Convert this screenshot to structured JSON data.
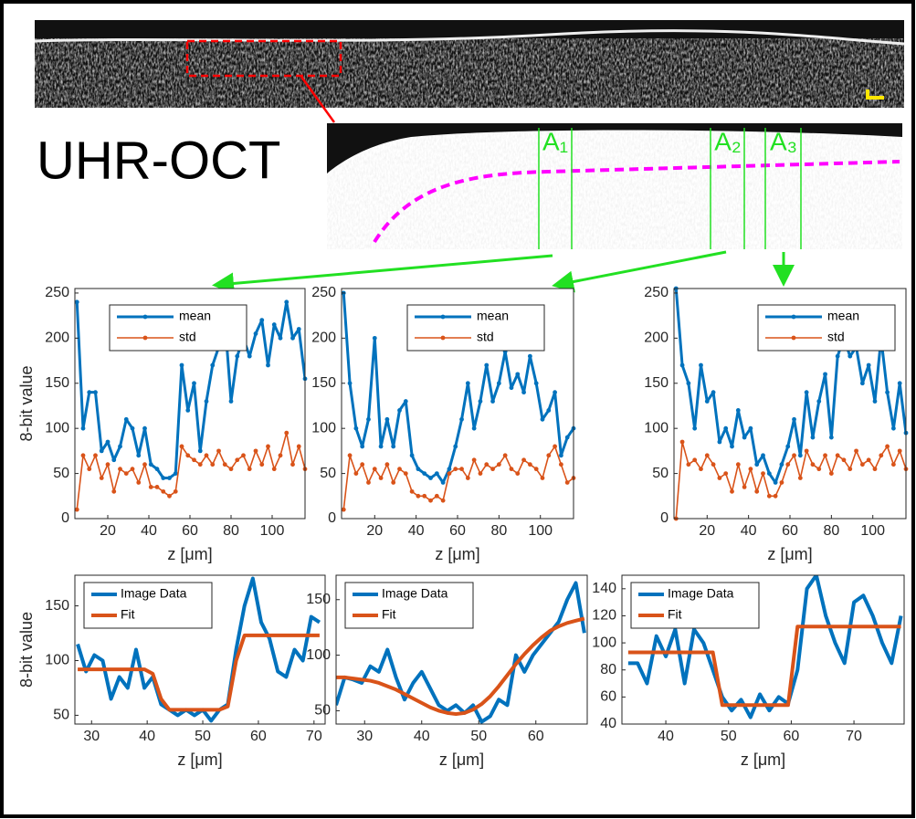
{
  "figure": {
    "label": "UHR-OCT",
    "regions": [
      "A₁",
      "A₂",
      "A₃"
    ]
  },
  "chart_data": [
    {
      "type": "line",
      "xlabel": "z [μm]",
      "ylabel": "8-bit value",
      "legend": "upper left",
      "markers": true,
      "x": [
        5,
        8,
        11,
        14,
        17,
        20,
        23,
        26,
        29,
        32,
        35,
        38,
        41,
        44,
        47,
        50,
        53,
        56,
        59,
        62,
        65,
        68,
        71,
        74,
        77,
        80,
        83,
        86,
        89,
        92,
        95,
        98,
        101,
        104,
        107,
        110,
        113,
        116
      ],
      "series": [
        {
          "name": "mean",
          "color": "#0072bd",
          "values": [
            240,
            100,
            140,
            140,
            75,
            85,
            65,
            80,
            110,
            100,
            70,
            100,
            60,
            55,
            45,
            45,
            50,
            170,
            120,
            150,
            75,
            130,
            170,
            190,
            220,
            130,
            180,
            200,
            180,
            205,
            220,
            170,
            215,
            200,
            240,
            200,
            210,
            155
          ]
        },
        {
          "name": "std",
          "color": "#d95319",
          "values": [
            10,
            70,
            55,
            70,
            45,
            60,
            30,
            55,
            50,
            55,
            40,
            60,
            35,
            35,
            30,
            25,
            30,
            80,
            70,
            65,
            60,
            70,
            60,
            75,
            60,
            55,
            65,
            70,
            55,
            75,
            60,
            80,
            55,
            70,
            95,
            60,
            80,
            55
          ]
        }
      ],
      "xlim": [
        4,
        116
      ],
      "xticks": [
        20,
        40,
        60,
        80,
        100
      ],
      "ylim": [
        0,
        255
      ],
      "yticks": [
        0,
        50,
        100,
        150,
        200,
        250
      ]
    },
    {
      "type": "line",
      "xlabel": "z [μm]",
      "legend": "upper center",
      "markers": true,
      "x": [
        5,
        8,
        11,
        14,
        17,
        20,
        23,
        26,
        29,
        32,
        35,
        38,
        41,
        44,
        47,
        50,
        53,
        56,
        59,
        62,
        65,
        68,
        71,
        74,
        77,
        80,
        83,
        86,
        89,
        92,
        95,
        98,
        101,
        104,
        107,
        110,
        113,
        116
      ],
      "series": [
        {
          "name": "mean",
          "color": "#0072bd",
          "values": [
            250,
            150,
            100,
            80,
            110,
            200,
            80,
            110,
            80,
            120,
            130,
            70,
            55,
            50,
            45,
            50,
            40,
            55,
            80,
            110,
            150,
            100,
            130,
            170,
            130,
            150,
            185,
            145,
            160,
            140,
            180,
            150,
            110,
            120,
            140,
            70,
            90,
            100
          ]
        },
        {
          "name": "std",
          "color": "#d95319",
          "values": [
            10,
            70,
            50,
            60,
            40,
            55,
            45,
            60,
            40,
            55,
            50,
            30,
            25,
            25,
            20,
            25,
            20,
            50,
            55,
            55,
            45,
            65,
            50,
            60,
            55,
            60,
            70,
            55,
            50,
            65,
            60,
            55,
            45,
            70,
            80,
            60,
            40,
            45
          ]
        }
      ],
      "xlim": [
        4,
        116
      ],
      "xticks": [
        20,
        40,
        60,
        80,
        100
      ],
      "ylim": [
        0,
        255
      ],
      "yticks": [
        0,
        50,
        100,
        150,
        200,
        250
      ]
    },
    {
      "type": "line",
      "xlabel": "z [μm]",
      "legend": "upper right",
      "markers": true,
      "x": [
        5,
        8,
        11,
        14,
        17,
        20,
        23,
        26,
        29,
        32,
        35,
        38,
        41,
        44,
        47,
        50,
        53,
        56,
        59,
        62,
        65,
        68,
        71,
        74,
        77,
        80,
        83,
        86,
        89,
        92,
        95,
        98,
        101,
        104,
        107,
        110,
        113,
        116
      ],
      "series": [
        {
          "name": "mean",
          "color": "#0072bd",
          "values": [
            255,
            170,
            150,
            100,
            170,
            130,
            140,
            85,
            100,
            80,
            120,
            90,
            100,
            60,
            70,
            50,
            40,
            60,
            80,
            110,
            70,
            140,
            90,
            130,
            160,
            90,
            180,
            200,
            180,
            190,
            150,
            170,
            130,
            200,
            140,
            100,
            150,
            95
          ]
        },
        {
          "name": "std",
          "color": "#d95319",
          "values": [
            0,
            85,
            60,
            65,
            55,
            70,
            60,
            45,
            50,
            30,
            60,
            35,
            55,
            30,
            50,
            25,
            25,
            40,
            60,
            70,
            45,
            75,
            60,
            55,
            70,
            50,
            70,
            65,
            55,
            75,
            60,
            65,
            55,
            70,
            80,
            60,
            75,
            55
          ]
        }
      ],
      "xlim": [
        4,
        116
      ],
      "xticks": [
        20,
        40,
        60,
        80,
        100
      ],
      "ylim": [
        0,
        255
      ],
      "yticks": [
        0,
        50,
        100,
        150,
        200,
        250
      ]
    },
    {
      "type": "line",
      "xlabel": "z [μm]",
      "ylabel": "8-bit value",
      "legend": "upper left",
      "markers": false,
      "x": [
        27.5,
        29,
        30.5,
        32,
        33.5,
        35,
        36.5,
        38,
        39.5,
        41,
        42.5,
        44,
        45.5,
        47,
        48.5,
        50,
        51.5,
        53,
        54.5,
        56,
        57.5,
        59,
        60.5,
        62,
        63.5,
        65,
        66.5,
        68,
        69.5,
        71
      ],
      "series": [
        {
          "name": "Image Data",
          "color": "#0072bd",
          "values": [
            115,
            90,
            105,
            100,
            65,
            85,
            75,
            110,
            75,
            85,
            60,
            55,
            50,
            55,
            50,
            55,
            45,
            55,
            60,
            110,
            150,
            175,
            135,
            120,
            90,
            85,
            110,
            100,
            140,
            135
          ]
        },
        {
          "name": "Fit",
          "color": "#d95319",
          "values": [
            92,
            92,
            92,
            92,
            92,
            92,
            92,
            92,
            92,
            88,
            65,
            55,
            55,
            55,
            55,
            55,
            55,
            55,
            58,
            100,
            123,
            123,
            123,
            123,
            123,
            123,
            123,
            123,
            123,
            123
          ]
        }
      ],
      "xlim": [
        27,
        72
      ],
      "xticks": [
        30,
        40,
        50,
        60,
        70
      ],
      "ylim": [
        42,
        178
      ],
      "yticks": [
        50,
        100,
        150
      ]
    },
    {
      "type": "line",
      "xlabel": "z [μm]",
      "legend": "upper left",
      "markers": false,
      "x": [
        25,
        26.5,
        28,
        29.5,
        31,
        32.5,
        34,
        35.5,
        37,
        38.5,
        40,
        41.5,
        43,
        44.5,
        46,
        47.5,
        49,
        50.5,
        52,
        53.5,
        55,
        56.5,
        58,
        59.5,
        61,
        62.5,
        64,
        65.5,
        67,
        68.5
      ],
      "series": [
        {
          "name": "Image Data",
          "color": "#0072bd",
          "values": [
            55,
            80,
            78,
            75,
            90,
            85,
            105,
            80,
            60,
            75,
            85,
            70,
            55,
            50,
            55,
            48,
            55,
            40,
            45,
            60,
            55,
            100,
            85,
            100,
            110,
            120,
            130,
            150,
            165,
            120
          ]
        },
        {
          "name": "Fit",
          "color": "#d95319",
          "values": [
            80,
            80,
            79,
            78,
            77,
            75,
            72,
            69,
            65,
            61,
            57,
            53,
            50,
            48,
            47,
            48,
            51,
            56,
            63,
            72,
            82,
            92,
            101,
            109,
            116,
            122,
            126,
            129,
            131,
            133
          ]
        }
      ],
      "xlim": [
        25,
        69
      ],
      "xticks": [
        30,
        40,
        50,
        60
      ],
      "ylim": [
        38,
        172
      ],
      "yticks": [
        50,
        100,
        150
      ]
    },
    {
      "type": "line",
      "xlabel": "z [μm]",
      "legend": "upper left",
      "markers": false,
      "x": [
        34,
        35.5,
        37,
        38.5,
        40,
        41.5,
        43,
        44.5,
        46,
        47.5,
        49,
        50.5,
        52,
        53.5,
        55,
        56.5,
        58,
        59.5,
        61,
        62.5,
        64,
        65.5,
        67,
        68.5,
        70,
        71.5,
        73,
        74.5,
        76,
        77.5
      ],
      "series": [
        {
          "name": "Image Data",
          "color": "#0072bd",
          "values": [
            85,
            85,
            70,
            105,
            90,
            110,
            70,
            110,
            100,
            80,
            60,
            50,
            58,
            45,
            62,
            50,
            60,
            55,
            80,
            140,
            150,
            120,
            100,
            85,
            130,
            135,
            120,
            100,
            85,
            120
          ]
        },
        {
          "name": "Fit",
          "color": "#d95319",
          "values": [
            93,
            93,
            93,
            93,
            93,
            93,
            93,
            93,
            93,
            93,
            54,
            54,
            54,
            54,
            54,
            54,
            54,
            54,
            112,
            112,
            112,
            112,
            112,
            112,
            112,
            112,
            112,
            112,
            112,
            112
          ]
        }
      ],
      "xlim": [
        33,
        78
      ],
      "xticks": [
        40,
        50,
        60,
        70
      ],
      "ylim": [
        40,
        150
      ],
      "yticks": [
        40,
        60,
        80,
        100,
        120,
        140
      ]
    }
  ]
}
